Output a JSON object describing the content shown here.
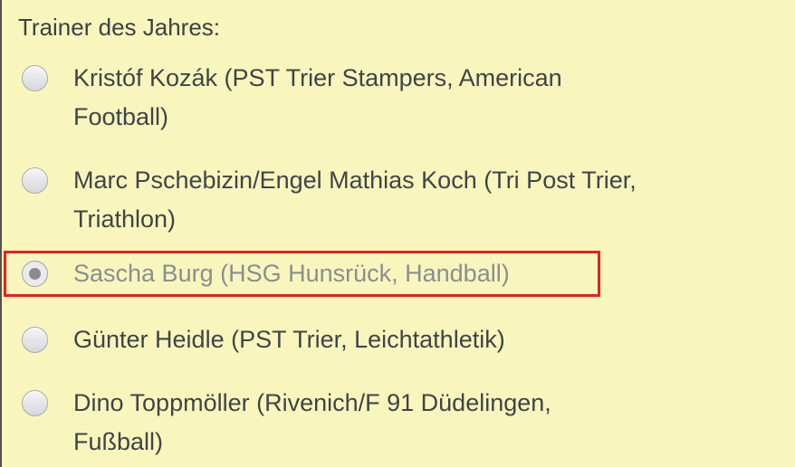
{
  "question": {
    "title": "Trainer des Jahres:",
    "options": [
      {
        "label": "Kristóf Kozák (PST Trier Stampers, American\nFootball)",
        "selected": false,
        "highlighted": false
      },
      {
        "label": "Marc Pschebizin/Engel Mathias Koch (Tri Post Trier,\nTriathlon)",
        "selected": false,
        "highlighted": false
      },
      {
        "label": "Sascha Burg (HSG Hunsrück, Handball)",
        "selected": true,
        "highlighted": true
      },
      {
        "label": "Günter Heidle (PST Trier, Leichtathletik)",
        "selected": false,
        "highlighted": false
      },
      {
        "label": "Dino Toppmöller (Rivenich/F 91 Düdelingen,\nFußball)",
        "selected": false,
        "highlighted": false
      }
    ]
  },
  "colors": {
    "background": "#f9f6bd",
    "text": "#3f4449",
    "selected_option_text": "#8a8e91",
    "highlight_border": "#e6211d",
    "radio_dot": "#8c8c8f"
  }
}
